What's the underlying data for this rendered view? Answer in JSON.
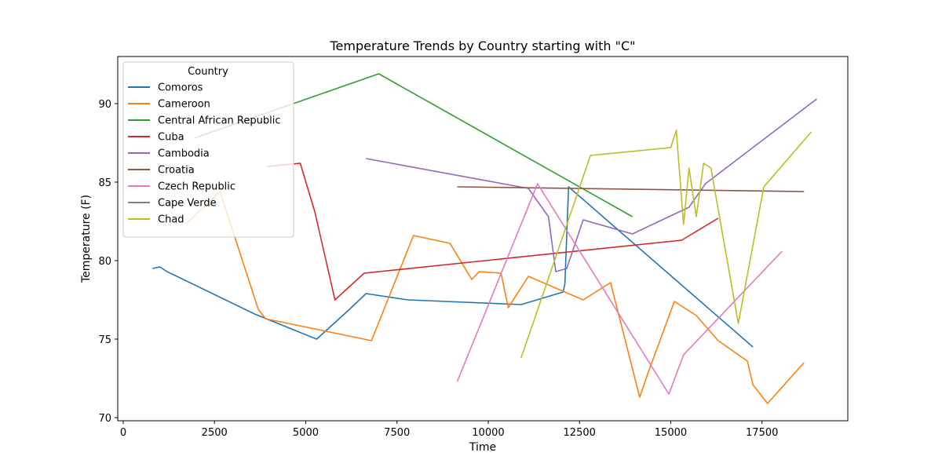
{
  "chart_data": {
    "type": "line",
    "title": "Temperature Trends by Country starting with \"C\"",
    "xlabel": "Time",
    "ylabel": "Temperature (F)",
    "xlim": [
      -150,
      19850
    ],
    "ylim": [
      69.8,
      93
    ],
    "xticks": [
      0,
      2500,
      5000,
      7500,
      10000,
      12500,
      15000,
      17500
    ],
    "yticks": [
      70,
      75,
      80,
      85,
      90
    ],
    "grid": false,
    "legend": {
      "title": "Country",
      "placement": "top-left"
    },
    "series": [
      {
        "name": "Comoros",
        "color": "#1f77b4",
        "x": [
          800,
          1000,
          1200,
          3600,
          5300,
          6200,
          6650,
          7800,
          10900,
          12050,
          12100,
          12200,
          17250
        ],
        "y": [
          79.5,
          79.6,
          79.3,
          76.6,
          75.0,
          76.9,
          77.9,
          77.5,
          77.2,
          78.0,
          78.5,
          84.7,
          74.5
        ]
      },
      {
        "name": "Cameroon",
        "color": "#ff7f0e",
        "x": [
          1700,
          2650,
          3700,
          3900,
          6800,
          7950,
          8950,
          9550,
          9750,
          10350,
          10550,
          11100,
          12600,
          13350,
          14150,
          14400,
          15100,
          15700,
          16300,
          17100,
          17250,
          17650,
          18650
        ],
        "y": [
          82.3,
          84.4,
          76.9,
          76.3,
          74.9,
          81.6,
          81.1,
          78.8,
          79.3,
          79.2,
          77.0,
          79.0,
          77.5,
          78.6,
          71.3,
          73.0,
          77.4,
          76.5,
          74.9,
          73.6,
          72.1,
          70.9,
          73.5
        ]
      },
      {
        "name": "Central African Republic",
        "color": "#2ca02c",
        "x": [
          1950,
          7000,
          13950
        ],
        "y": [
          87.8,
          91.9,
          82.8
        ]
      },
      {
        "name": "Cuba",
        "color": "#d62728",
        "x": [
          3950,
          4850,
          5250,
          5800,
          6600,
          15300,
          16300
        ],
        "y": [
          86.0,
          86.2,
          83.1,
          77.5,
          79.2,
          81.3,
          82.7
        ]
      },
      {
        "name": "Cambodia",
        "color": "#9467bd",
        "x": [
          6650,
          11100,
          11650,
          11850,
          12150,
          12600,
          13950,
          15500,
          15950,
          19000
        ],
        "y": [
          86.5,
          84.6,
          82.8,
          79.3,
          79.5,
          82.6,
          81.7,
          83.4,
          84.9,
          90.3
        ]
      },
      {
        "name": "Croatia",
        "color": "#8c564b",
        "x": [
          9150,
          18650
        ],
        "y": [
          84.7,
          84.4
        ]
      },
      {
        "name": "Czech Republic",
        "color": "#e377c2",
        "x": [
          9150,
          11350,
          14950,
          15350,
          18050
        ],
        "y": [
          72.3,
          84.9,
          71.5,
          74.0,
          80.6
        ]
      },
      {
        "name": "Cape Verde",
        "color": "#7f7f7f",
        "x": [],
        "y": []
      },
      {
        "name": "Chad",
        "color": "#bcbd22",
        "x": [
          10900,
          11800,
          12800,
          15000,
          15150,
          15350,
          15500,
          15700,
          15900,
          16100,
          16850,
          17550,
          18850
        ],
        "y": [
          73.8,
          79.9,
          86.7,
          87.2,
          88.3,
          82.3,
          85.9,
          82.8,
          86.2,
          85.9,
          76.0,
          84.7,
          88.2
        ]
      }
    ]
  }
}
